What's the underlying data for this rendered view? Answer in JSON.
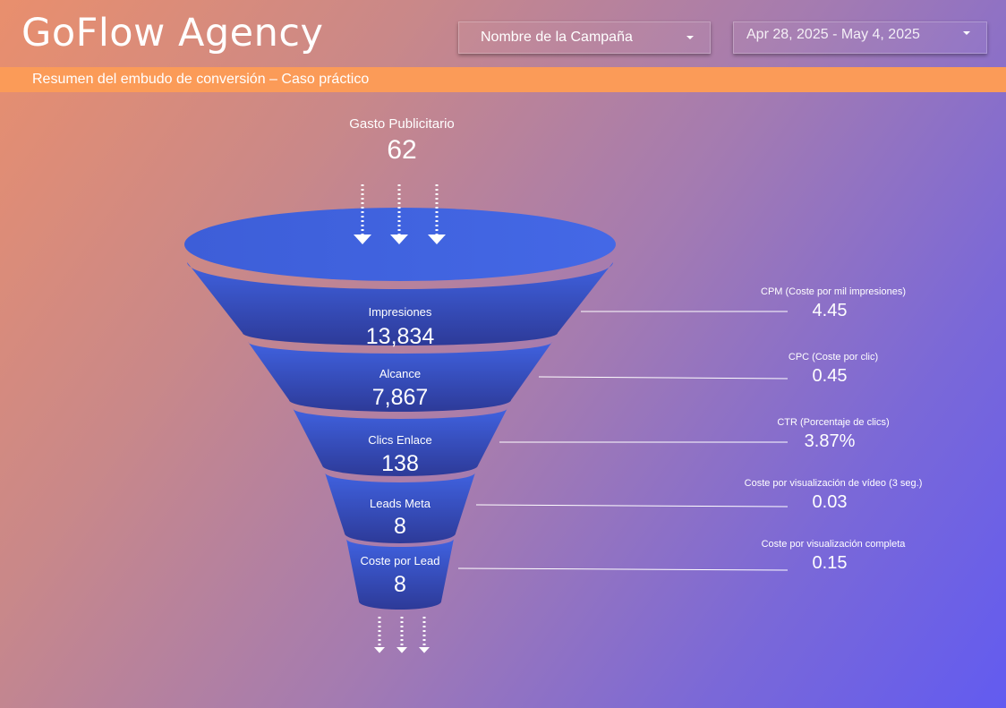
{
  "header": {
    "title": "GoFlow Agency",
    "campaign_filter": "Nombre de la Campaña",
    "date_range": "Apr 28, 2025 - May 4, 2025"
  },
  "banner": {
    "subtitle": "Resumen del embudo de conversión – Caso práctico"
  },
  "ad_spend": {
    "label": "Gasto Publicitario",
    "value": "62"
  },
  "funnel": [
    {
      "label": "Impresiones",
      "value": "13,834"
    },
    {
      "label": "Alcance",
      "value": "7,867"
    },
    {
      "label": "Clics Enlace",
      "value": "138"
    },
    {
      "label": "Leads Meta",
      "value": "8"
    },
    {
      "label": "Coste por Lead",
      "value": "8"
    }
  ],
  "metrics": [
    {
      "label": "CPM (Coste por mil impresiones)",
      "value": "4.45"
    },
    {
      "label": "CPC (Coste por clic)",
      "value": "0.45"
    },
    {
      "label": "CTR (Porcentaje de clics)",
      "value": "3.87%"
    },
    {
      "label": "Coste por visualización de vídeo (3 seg.)",
      "value": "0.03"
    },
    {
      "label": "Coste por visualización completa",
      "value": "0.15"
    }
  ],
  "colors": {
    "funnel_top": "#4060e0",
    "funnel_bottom": "#2a3590",
    "banner": "#fb9b58"
  }
}
